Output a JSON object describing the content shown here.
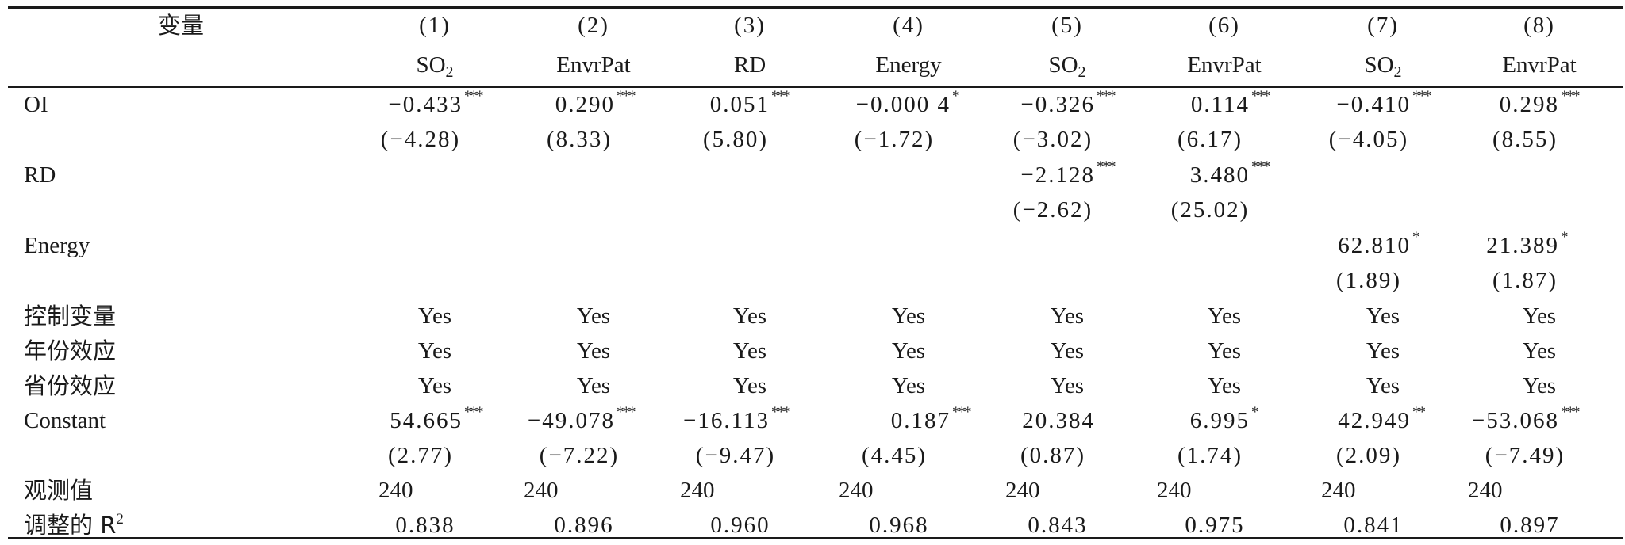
{
  "header": {
    "var_label": "变量",
    "col_nums": [
      "(1)",
      "(2)",
      "(3)",
      "(4)",
      "(5)",
      "(6)",
      "(7)",
      "(8)"
    ],
    "dep_vars": [
      {
        "base": "SO",
        "sub": "2"
      },
      {
        "base": "EnvrPat",
        "sub": ""
      },
      {
        "base": "RD",
        "sub": ""
      },
      {
        "base": "Energy",
        "sub": ""
      },
      {
        "base": "SO",
        "sub": "2"
      },
      {
        "base": "EnvrPat",
        "sub": ""
      },
      {
        "base": "SO",
        "sub": "2"
      },
      {
        "base": "EnvrPat",
        "sub": ""
      }
    ]
  },
  "rows": {
    "oi": {
      "label": "OI",
      "coefs": [
        "-0.433",
        "0.290",
        "0.051",
        "-0.000 4",
        "-0.326",
        "0.114",
        "-0.410",
        "0.298"
      ],
      "stars": [
        "***",
        "***",
        "***",
        "*",
        "***",
        "***",
        "***",
        "***"
      ],
      "tstats": [
        "(-4.28)",
        "(8.33)",
        "(5.80)",
        "(-1.72)",
        "(-3.02)",
        "(6.17)",
        "(-4.05)",
        "(8.55)"
      ]
    },
    "rd": {
      "label": "RD",
      "coef5": "-2.128",
      "star5": "***",
      "t5": "(-2.62)",
      "coef6": "3.480",
      "star6": "***",
      "t6": "(25.02)"
    },
    "energy": {
      "label": "Energy",
      "coef7": "62.810",
      "star7": "*",
      "t7": "(1.89)",
      "coef8": "21.389",
      "star8": "*",
      "t8": "(1.87)"
    },
    "controls": {
      "label": "控制变量",
      "value": "Yes"
    },
    "year_fe": {
      "label": "年份效应",
      "value": "Yes"
    },
    "prov_fe": {
      "label": "省份效应",
      "value": "Yes"
    },
    "constant": {
      "label": "Constant",
      "coefs": [
        "54.665",
        "-49.078",
        "-16.113",
        "0.187",
        "20.384",
        "6.995",
        "42.949",
        "-53.068"
      ],
      "stars": [
        "***",
        "***",
        "***",
        "***",
        "",
        "*",
        "**",
        "***"
      ],
      "tstats": [
        "(2.77)",
        "(-7.22)",
        "(-9.47)",
        "(4.45)",
        "(0.87)",
        "(1.74)",
        "(2.09)",
        "(-7.49)"
      ]
    },
    "nobs": {
      "label": "观测值",
      "values": [
        "240",
        "240",
        "240",
        "240",
        "240",
        "240",
        "240",
        "240"
      ]
    },
    "adj_r2": {
      "label_text": "调整的 R",
      "label_sup": "2",
      "values": [
        "0.838",
        "0.896",
        "0.960",
        "0.968",
        "0.843",
        "0.975",
        "0.841",
        "0.897"
      ]
    }
  }
}
